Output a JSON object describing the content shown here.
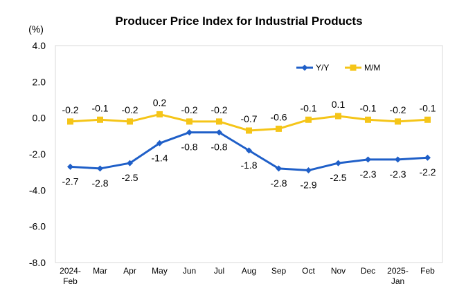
{
  "chart_data": {
    "type": "line",
    "title": "Producer Price Index for Industrial Products",
    "unit_label": "(%)",
    "xlabel": "",
    "ylabel": "(%)",
    "ylim": [
      -8.0,
      4.0
    ],
    "yticks": [
      4.0,
      2.0,
      0.0,
      -2.0,
      -4.0,
      -6.0,
      -8.0
    ],
    "ytick_labels": [
      "4.0",
      "2.0",
      "0.0",
      "-2.0",
      "-4.0",
      "-6.0",
      "-8.0"
    ],
    "grid": false,
    "legend_position": "top-right",
    "categories": [
      [
        "2024-",
        "Feb"
      ],
      [
        "Mar"
      ],
      [
        "Apr"
      ],
      [
        "May"
      ],
      [
        "Jun"
      ],
      [
        "Jul"
      ],
      [
        "Aug"
      ],
      [
        "Sep"
      ],
      [
        "Oct"
      ],
      [
        "Nov"
      ],
      [
        "Dec"
      ],
      [
        "2025-",
        "Jan"
      ],
      [
        "Feb"
      ]
    ],
    "series": [
      {
        "name": "Y/Y",
        "color": "#1F5FC8",
        "marker": "diamond",
        "values": [
          -2.7,
          -2.8,
          -2.5,
          -1.4,
          -0.8,
          -0.8,
          -1.8,
          -2.8,
          -2.9,
          -2.5,
          -2.3,
          -2.3,
          -2.2
        ],
        "labels": [
          "-2.7",
          "-2.8",
          "-2.5",
          "-1.4",
          "-0.8",
          "-0.8",
          "-1.8",
          "-2.8",
          "-2.9",
          "-2.5",
          "-2.3",
          "-2.3",
          "-2.2"
        ],
        "label_position": [
          "below",
          "below",
          "below",
          "below",
          "below",
          "below",
          "below",
          "below",
          "below",
          "below",
          "below",
          "below",
          "below"
        ]
      },
      {
        "name": "M/M",
        "color": "#F5C518",
        "marker": "square",
        "values": [
          -0.2,
          -0.1,
          -0.2,
          0.2,
          -0.2,
          -0.2,
          -0.7,
          -0.6,
          -0.1,
          0.1,
          -0.1,
          -0.2,
          -0.1
        ],
        "labels": [
          "-0.2",
          "-0.1",
          "-0.2",
          "0.2",
          "-0.2",
          "-0.2",
          "-0.7",
          "-0.6",
          "-0.1",
          "0.1",
          "-0.1",
          "-0.2",
          "-0.1"
        ],
        "label_position": [
          "above",
          "above",
          "above",
          "above",
          "above",
          "above",
          "above",
          "above",
          "above",
          "above",
          "above",
          "above",
          "above"
        ]
      }
    ]
  }
}
